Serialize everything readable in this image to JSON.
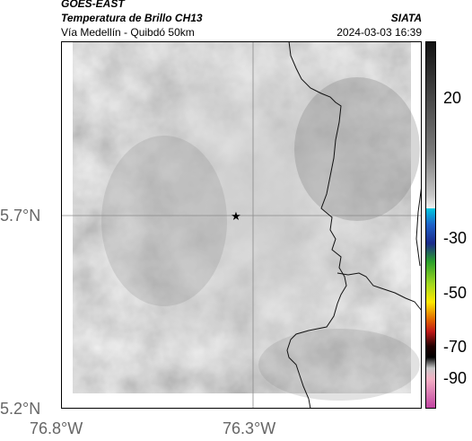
{
  "header": {
    "line1": "GOES-EAST",
    "line2": "Temperatura de Brillo CH13",
    "line3": "Vía Medellín - Quibdó 50km",
    "agency": "SIATA",
    "datetime": "2024-03-03 16:39"
  },
  "map": {
    "lat_ticks": [
      "5.7°N",
      "5.2°N"
    ],
    "lon_ticks": [
      "76.8°W",
      "76.3°W"
    ],
    "marker": "star",
    "colors": {
      "cloud_dark": "#777777",
      "cloud_light": "#c8c8c8",
      "border": "#111111",
      "grid": "#8a8a8a"
    }
  },
  "colorbar": {
    "ticks": [
      "20",
      "-30",
      "-50",
      "-70",
      "-90"
    ],
    "colors": [
      "#111111",
      "#555555",
      "#9a9a9a",
      "#cfcfcf",
      "#e9e9e9",
      "#00bcd4",
      "#1e3a9e",
      "#2e9d2e",
      "#ffee00",
      "#e03a00",
      "#7a1010",
      "#000000",
      "#f6b8c6",
      "#c040a0"
    ]
  }
}
